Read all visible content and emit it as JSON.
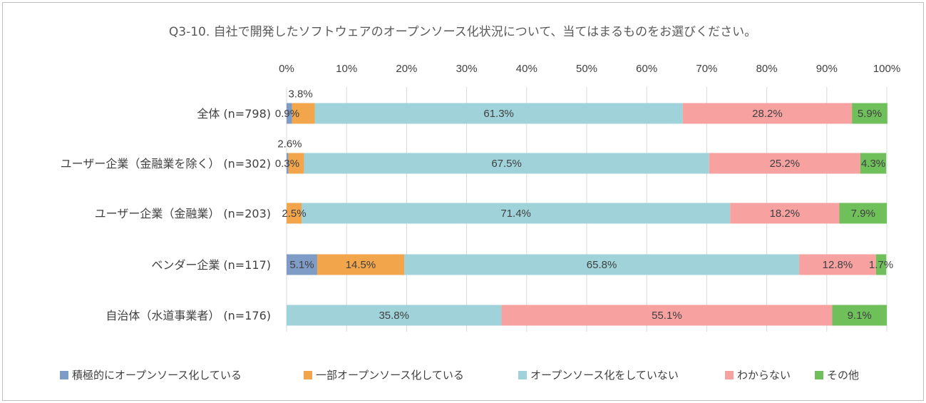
{
  "chart_data": {
    "type": "bar",
    "orientation": "horizontal",
    "stacked": "percent",
    "title": "Q3-10. 自社で開発したソフトウェアのオープンソース化状況について、当てはまるものをお選びください。",
    "xlim": [
      0,
      100
    ],
    "ticks": [
      "0%",
      "10%",
      "20%",
      "30%",
      "40%",
      "50%",
      "60%",
      "70%",
      "80%",
      "90%",
      "100%"
    ],
    "grid": true,
    "legend_position": "bottom",
    "categories": [
      "全体 (n=798)",
      "ユーザー企業（金融業を除く） (n=302)",
      "ユーザー企業（金融業） (n=203)",
      "ベンダー企業 (n=117)",
      "自治体（水道事業者） (n=176)"
    ],
    "series": [
      {
        "name": "積極的にオープンソース化している",
        "color": "#7f9cc6",
        "values": [
          0.9,
          0.3,
          0,
          5.1,
          0
        ],
        "labels": [
          "0.9%",
          "0.3%",
          "",
          "5.1%",
          ""
        ]
      },
      {
        "name": "一部オープンソース化している",
        "color": "#f2a54a",
        "values": [
          3.8,
          2.6,
          2.5,
          14.5,
          0
        ],
        "labels": [
          "3.8%",
          "2.6%",
          "2.5%",
          "14.5%",
          ""
        ]
      },
      {
        "name": "オープンソース化をしていない",
        "color": "#9fd3d9",
        "values": [
          61.3,
          67.5,
          71.4,
          65.8,
          35.8
        ],
        "labels": [
          "61.3%",
          "67.5%",
          "71.4%",
          "65.8%",
          "35.8%"
        ]
      },
      {
        "name": "わからない",
        "color": "#f7a1a1",
        "values": [
          28.2,
          25.2,
          18.2,
          12.8,
          55.1
        ],
        "labels": [
          "28.2%",
          "25.2%",
          "18.2%",
          "12.8%",
          "55.1%"
        ]
      },
      {
        "name": "その他",
        "color": "#6fbf5a",
        "values": [
          5.9,
          4.3,
          7.9,
          1.7,
          9.1
        ],
        "labels": [
          "5.9%",
          "4.3%",
          "7.9%",
          "1.7%",
          "9.1%"
        ]
      }
    ]
  }
}
